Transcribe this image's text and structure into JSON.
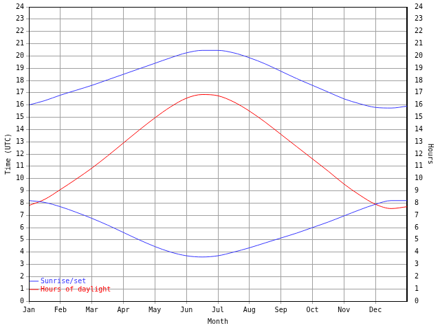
{
  "chart_data": {
    "type": "line",
    "x_label": "Month",
    "y_label": "Time (UTC)",
    "y2_label": "Hours",
    "x": [
      0,
      0.5,
      1,
      1.5,
      2,
      2.5,
      3,
      3.5,
      4,
      4.5,
      5,
      5.5,
      6,
      6.5,
      7,
      7.5,
      8,
      8.5,
      9,
      9.5,
      10,
      10.5,
      11,
      11.5,
      12
    ],
    "xlim": [
      0,
      12
    ],
    "xticks": [
      {
        "value": 0,
        "label": "Jan"
      },
      {
        "value": 1,
        "label": "Feb"
      },
      {
        "value": 2,
        "label": "Mar"
      },
      {
        "value": 3,
        "label": "Apr"
      },
      {
        "value": 4,
        "label": "May"
      },
      {
        "value": 5,
        "label": "Jun"
      },
      {
        "value": 6,
        "label": "Jul"
      },
      {
        "value": 7,
        "label": "Aug"
      },
      {
        "value": 8,
        "label": "Sep"
      },
      {
        "value": 9,
        "label": "Oct"
      },
      {
        "value": 10,
        "label": "Nov"
      },
      {
        "value": 11,
        "label": "Dec"
      }
    ],
    "ylim": [
      0,
      24
    ],
    "yticks": [
      0,
      1,
      2,
      3,
      4,
      5,
      6,
      7,
      8,
      9,
      10,
      11,
      12,
      13,
      14,
      15,
      16,
      17,
      18,
      19,
      20,
      21,
      22,
      23,
      24
    ],
    "y2lim": [
      0,
      24
    ],
    "y2ticks": [
      0,
      1,
      2,
      3,
      4,
      5,
      6,
      7,
      8,
      9,
      10,
      11,
      12,
      13,
      14,
      15,
      16,
      17,
      18,
      19,
      20,
      21,
      22,
      23,
      24
    ],
    "grid": true,
    "legend": "top-right",
    "series": [
      {
        "name": "Sunrise/set",
        "color": "#3333ff",
        "values": [
          16.0,
          16.35,
          16.8,
          17.2,
          17.6,
          18.05,
          18.5,
          18.95,
          19.4,
          19.85,
          20.25,
          20.45,
          20.45,
          20.25,
          19.85,
          19.35,
          18.75,
          18.15,
          17.6,
          17.05,
          16.5,
          16.1,
          15.8,
          15.75,
          15.9
        ]
      },
      {
        "name": "Sunrise/set",
        "color": "#3333ff",
        "values": [
          8.2,
          8.05,
          7.7,
          7.25,
          6.75,
          6.2,
          5.6,
          5.0,
          4.45,
          4.0,
          3.7,
          3.6,
          3.7,
          4.0,
          4.35,
          4.75,
          5.15,
          5.55,
          6.0,
          6.45,
          6.95,
          7.45,
          7.9,
          8.2,
          8.2
        ]
      },
      {
        "name": "Hours of daylight",
        "color": "#ff0000",
        "axis": "y2",
        "values": [
          7.8,
          8.3,
          9.1,
          9.95,
          10.85,
          11.85,
          12.9,
          13.95,
          14.95,
          15.85,
          16.55,
          16.85,
          16.75,
          16.25,
          15.5,
          14.6,
          13.6,
          12.6,
          11.6,
          10.6,
          9.55,
          8.65,
          7.9,
          7.55,
          7.7
        ]
      }
    ]
  }
}
